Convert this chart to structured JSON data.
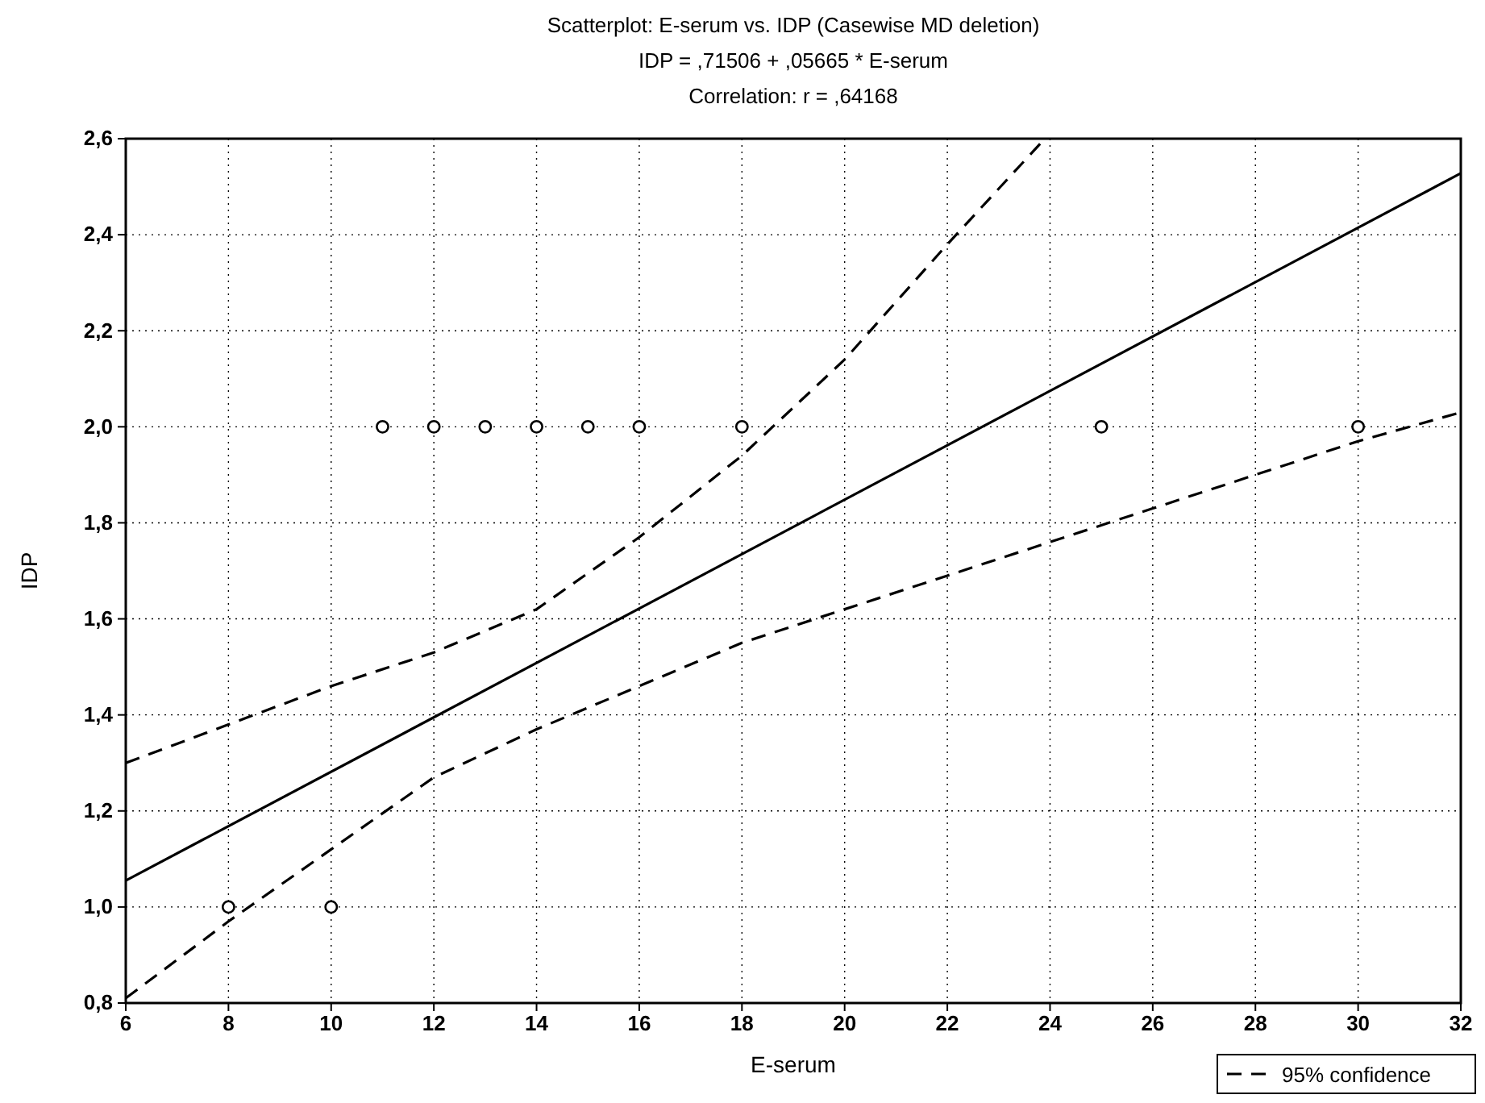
{
  "chart_data": {
    "type": "scatter",
    "title": "Scatterplot: E-serum  vs. IDP      (Casewise MD deletion)",
    "subtitle": "IDP      = ,71506 + ,05665 * E-serum",
    "annotations": [
      "Correlation: r = ,64168"
    ],
    "xlabel": "E-serum",
    "ylabel": "IDP",
    "xlim": [
      6,
      32
    ],
    "xticks": [
      6,
      8,
      10,
      12,
      14,
      16,
      18,
      20,
      22,
      24,
      26,
      28,
      30,
      32
    ],
    "ylim": [
      0.8,
      2.6
    ],
    "yticks": [
      {
        "value": 0.8,
        "label": "0,8"
      },
      {
        "value": 1.0,
        "label": "1,0"
      },
      {
        "value": 1.2,
        "label": "1,2"
      },
      {
        "value": 1.4,
        "label": "1,4"
      },
      {
        "value": 1.6,
        "label": "1,6"
      },
      {
        "value": 1.8,
        "label": "1,8"
      },
      {
        "value": 2.0,
        "label": "2,0"
      },
      {
        "value": 2.2,
        "label": "2,2"
      },
      {
        "value": 2.4,
        "label": "2,4"
      },
      {
        "value": 2.6,
        "label": "2,6"
      }
    ],
    "grid": true,
    "legend": "bottom right",
    "marker": "circle",
    "series": [
      {
        "color": "#000000",
        "x": [
          8,
          10,
          11,
          12,
          13,
          14,
          15,
          16,
          18,
          25,
          30
        ],
        "values": [
          1.0,
          1.0,
          2.0,
          2.0,
          2.0,
          2.0,
          2.0,
          2.0,
          2.0,
          2.0,
          2.0
        ]
      },
      {
        "type": "line",
        "color": "#000000",
        "line_style": "solid",
        "marker": "none",
        "x": [
          6,
          32
        ],
        "values": [
          1.055,
          2.528
        ]
      },
      {
        "type": "line",
        "name": "95% confidence",
        "color": "#000000",
        "line_style": "dashed",
        "marker": "none",
        "x": [
          6,
          8,
          10,
          12,
          14,
          16,
          18,
          20,
          22,
          23.9
        ],
        "values": [
          1.3,
          1.38,
          1.46,
          1.53,
          1.62,
          1.77,
          1.94,
          2.14,
          2.38,
          2.6
        ]
      },
      {
        "type": "line",
        "color": "#000000",
        "line_style": "dashed",
        "marker": "none",
        "x": [
          6,
          8,
          10,
          12,
          14,
          16,
          18,
          20,
          22,
          24,
          26,
          28,
          30,
          32
        ],
        "values": [
          0.81,
          0.97,
          1.12,
          1.27,
          1.37,
          1.46,
          1.55,
          1.62,
          1.69,
          1.76,
          1.83,
          1.9,
          1.97,
          2.03
        ]
      }
    ]
  }
}
